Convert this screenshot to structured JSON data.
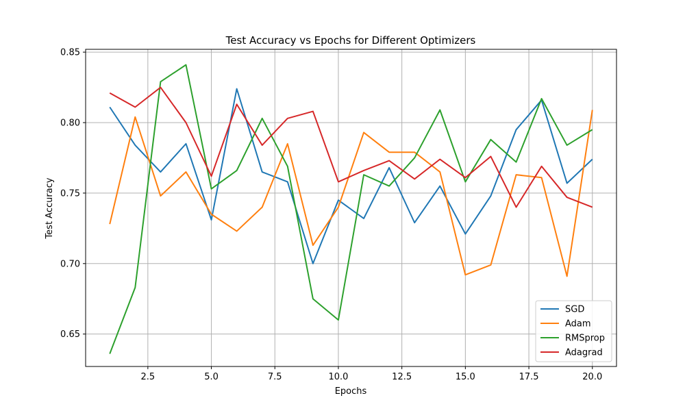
{
  "chart_data": {
    "type": "line",
    "title": "Test Accuracy vs Epochs for Different Optimizers",
    "xlabel": "Epochs",
    "ylabel": "Test Accuracy",
    "xlim": [
      0.05,
      20.95
    ],
    "ylim": [
      0.627,
      0.852
    ],
    "x_ticks": [
      2.5,
      5.0,
      7.5,
      10.0,
      12.5,
      15.0,
      17.5,
      20.0
    ],
    "x_tick_labels": [
      "2.5",
      "5.0",
      "7.5",
      "10.0",
      "12.5",
      "15.0",
      "17.5",
      "20.0"
    ],
    "y_ticks": [
      0.65,
      0.7,
      0.75,
      0.8,
      0.85
    ],
    "y_tick_labels": [
      "0.65",
      "0.70",
      "0.75",
      "0.80",
      "0.85"
    ],
    "grid": true,
    "legend_position": "bottom-right",
    "x": [
      1,
      2,
      3,
      4,
      5,
      6,
      7,
      8,
      9,
      10,
      11,
      12,
      13,
      14,
      15,
      16,
      17,
      18,
      19,
      20
    ],
    "series": [
      {
        "name": "SGD",
        "color": "#1f77b4",
        "values": [
          0.811,
          0.784,
          0.765,
          0.785,
          0.731,
          0.824,
          0.765,
          0.758,
          0.7,
          0.745,
          0.732,
          0.768,
          0.729,
          0.755,
          0.721,
          0.748,
          0.795,
          0.816,
          0.757,
          0.774
        ]
      },
      {
        "name": "Adam",
        "color": "#ff7f0e",
        "values": [
          0.728,
          0.804,
          0.748,
          0.765,
          0.735,
          0.723,
          0.74,
          0.785,
          0.713,
          0.74,
          0.793,
          0.779,
          0.779,
          0.765,
          0.692,
          0.699,
          0.763,
          0.761,
          0.691,
          0.809
        ]
      },
      {
        "name": "RMSprop",
        "color": "#2ca02c",
        "values": [
          0.636,
          0.683,
          0.829,
          0.841,
          0.753,
          0.766,
          0.803,
          0.769,
          0.675,
          0.66,
          0.763,
          0.755,
          0.775,
          0.809,
          0.758,
          0.788,
          0.772,
          0.817,
          0.784,
          0.795
        ]
      },
      {
        "name": "Adagrad",
        "color": "#d62728",
        "values": [
          0.821,
          0.811,
          0.825,
          0.8,
          0.762,
          0.813,
          0.784,
          0.803,
          0.808,
          0.758,
          0.766,
          0.773,
          0.76,
          0.774,
          0.761,
          0.776,
          0.74,
          0.769,
          0.747,
          0.74
        ]
      }
    ]
  }
}
